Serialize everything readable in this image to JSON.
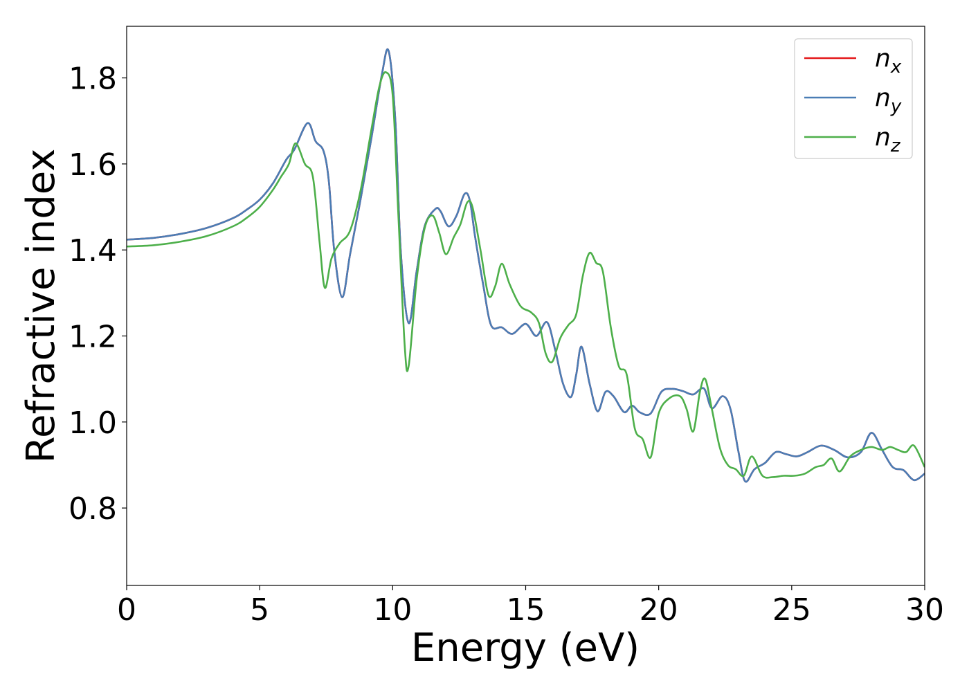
{
  "chart_data": {
    "type": "line",
    "xlabel": "Energy (eV)",
    "ylabel": "Refractive index",
    "xlim": [
      0,
      30
    ],
    "ylim": [
      0.62,
      1.92
    ],
    "xticks": [
      0,
      5,
      10,
      15,
      20,
      25,
      30
    ],
    "yticks": [
      0.8,
      1.0,
      1.2,
      1.4,
      1.6,
      1.8
    ],
    "ytick_labels": [
      "0.8",
      "1.0",
      "1.2",
      "1.4",
      "1.6",
      "1.8"
    ],
    "grid": false,
    "legend_position": "top-right",
    "series": [
      {
        "name": "n",
        "subscript": "x",
        "color": "#e41a1c",
        "x": [
          0,
          1,
          2,
          3,
          4,
          4.5,
          5,
          5.5,
          6,
          6.3,
          6.8,
          7.1,
          7.4,
          7.6,
          7.8,
          8.1,
          8.4,
          8.8,
          9.2,
          9.6,
          9.85,
          10.1,
          10.3,
          10.6,
          10.9,
          11.2,
          11.6,
          11.8,
          12.1,
          12.4,
          12.7,
          12.9,
          13.1,
          13.4,
          13.7,
          14.1,
          14.5,
          15.0,
          15.4,
          15.8,
          16.1,
          16.4,
          16.7,
          16.9,
          17.1,
          17.4,
          17.7,
          18.0,
          18.3,
          18.7,
          19.0,
          19.3,
          19.7,
          20.1,
          20.5,
          20.9,
          21.3,
          21.7,
          22.0,
          22.4,
          22.7,
          23.0,
          23.25,
          23.6,
          24.0,
          24.4,
          24.8,
          25.2,
          25.6,
          26.1,
          26.6,
          27.1,
          27.6,
          28.0,
          28.4,
          28.8,
          29.2,
          29.6,
          30
        ],
        "y": [
          1.424,
          1.428,
          1.437,
          1.451,
          1.474,
          1.493,
          1.517,
          1.555,
          1.61,
          1.633,
          1.695,
          1.653,
          1.63,
          1.56,
          1.4,
          1.29,
          1.39,
          1.52,
          1.66,
          1.81,
          1.862,
          1.7,
          1.4,
          1.23,
          1.35,
          1.455,
          1.495,
          1.49,
          1.455,
          1.48,
          1.53,
          1.515,
          1.43,
          1.32,
          1.225,
          1.22,
          1.205,
          1.228,
          1.2,
          1.232,
          1.17,
          1.09,
          1.058,
          1.11,
          1.175,
          1.09,
          1.025,
          1.07,
          1.06,
          1.023,
          1.038,
          1.022,
          1.02,
          1.07,
          1.077,
          1.072,
          1.064,
          1.078,
          1.032,
          1.06,
          1.03,
          0.93,
          0.862,
          0.89,
          0.905,
          0.93,
          0.925,
          0.92,
          0.93,
          0.945,
          0.935,
          0.918,
          0.93,
          0.975,
          0.935,
          0.895,
          0.888,
          0.865,
          0.88
        ]
      },
      {
        "name": "n",
        "subscript": "y",
        "color": "#4a7db5",
        "x": [
          0,
          1,
          2,
          3,
          4,
          4.5,
          5,
          5.5,
          6,
          6.3,
          6.8,
          7.1,
          7.4,
          7.6,
          7.8,
          8.1,
          8.4,
          8.8,
          9.2,
          9.6,
          9.85,
          10.1,
          10.3,
          10.6,
          10.9,
          11.2,
          11.6,
          11.8,
          12.1,
          12.4,
          12.7,
          12.9,
          13.1,
          13.4,
          13.7,
          14.1,
          14.5,
          15.0,
          15.4,
          15.8,
          16.1,
          16.4,
          16.7,
          16.9,
          17.1,
          17.4,
          17.7,
          18.0,
          18.3,
          18.7,
          19.0,
          19.3,
          19.7,
          20.1,
          20.5,
          20.9,
          21.3,
          21.7,
          22.0,
          22.4,
          22.7,
          23.0,
          23.25,
          23.6,
          24.0,
          24.4,
          24.8,
          25.2,
          25.6,
          26.1,
          26.6,
          27.1,
          27.6,
          28.0,
          28.4,
          28.8,
          29.2,
          29.6,
          30
        ],
        "y": [
          1.424,
          1.428,
          1.437,
          1.451,
          1.474,
          1.493,
          1.517,
          1.555,
          1.61,
          1.633,
          1.695,
          1.653,
          1.63,
          1.56,
          1.4,
          1.29,
          1.39,
          1.52,
          1.66,
          1.81,
          1.862,
          1.7,
          1.4,
          1.23,
          1.35,
          1.455,
          1.495,
          1.49,
          1.455,
          1.48,
          1.53,
          1.515,
          1.43,
          1.32,
          1.225,
          1.22,
          1.205,
          1.228,
          1.2,
          1.232,
          1.17,
          1.09,
          1.058,
          1.11,
          1.175,
          1.09,
          1.025,
          1.07,
          1.06,
          1.023,
          1.038,
          1.022,
          1.02,
          1.07,
          1.077,
          1.072,
          1.064,
          1.078,
          1.032,
          1.06,
          1.03,
          0.93,
          0.862,
          0.89,
          0.905,
          0.93,
          0.925,
          0.92,
          0.93,
          0.945,
          0.935,
          0.918,
          0.93,
          0.975,
          0.935,
          0.895,
          0.888,
          0.865,
          0.88
        ]
      },
      {
        "name": "n",
        "subscript": "z",
        "color": "#4daf4a",
        "x": [
          0,
          1,
          2,
          3,
          4,
          4.5,
          5,
          5.5,
          5.8,
          6.1,
          6.35,
          6.7,
          7.0,
          7.25,
          7.45,
          7.7,
          8.0,
          8.4,
          8.8,
          9.2,
          9.5,
          9.75,
          10.0,
          10.2,
          10.45,
          10.6,
          10.9,
          11.2,
          11.5,
          11.75,
          12.0,
          12.3,
          12.55,
          12.8,
          13.0,
          13.3,
          13.6,
          13.85,
          14.1,
          14.4,
          14.8,
          15.2,
          15.5,
          15.75,
          16.0,
          16.3,
          16.6,
          16.9,
          17.15,
          17.4,
          17.65,
          17.9,
          18.2,
          18.5,
          18.8,
          19.1,
          19.4,
          19.7,
          20.0,
          20.4,
          20.8,
          21.05,
          21.3,
          21.55,
          21.75,
          22.0,
          22.3,
          22.6,
          22.9,
          23.2,
          23.5,
          23.9,
          24.3,
          24.7,
          25.1,
          25.5,
          25.9,
          26.2,
          26.5,
          26.8,
          27.2,
          27.6,
          28.0,
          28.4,
          28.7,
          29.0,
          29.3,
          29.6,
          30
        ],
        "y": [
          1.408,
          1.411,
          1.419,
          1.432,
          1.455,
          1.474,
          1.5,
          1.54,
          1.57,
          1.6,
          1.648,
          1.6,
          1.57,
          1.42,
          1.312,
          1.38,
          1.415,
          1.445,
          1.54,
          1.68,
          1.78,
          1.813,
          1.76,
          1.5,
          1.18,
          1.13,
          1.33,
          1.45,
          1.48,
          1.44,
          1.39,
          1.43,
          1.46,
          1.51,
          1.5,
          1.4,
          1.295,
          1.315,
          1.368,
          1.32,
          1.27,
          1.255,
          1.23,
          1.16,
          1.14,
          1.195,
          1.225,
          1.25,
          1.34,
          1.393,
          1.37,
          1.35,
          1.22,
          1.13,
          1.11,
          0.985,
          0.96,
          0.918,
          1.02,
          1.055,
          1.06,
          1.03,
          0.978,
          1.07,
          1.1,
          1.03,
          0.94,
          0.9,
          0.89,
          0.875,
          0.92,
          0.875,
          0.872,
          0.875,
          0.875,
          0.88,
          0.895,
          0.9,
          0.915,
          0.885,
          0.92,
          0.935,
          0.942,
          0.935,
          0.942,
          0.935,
          0.93,
          0.945,
          0.895
        ]
      }
    ]
  }
}
